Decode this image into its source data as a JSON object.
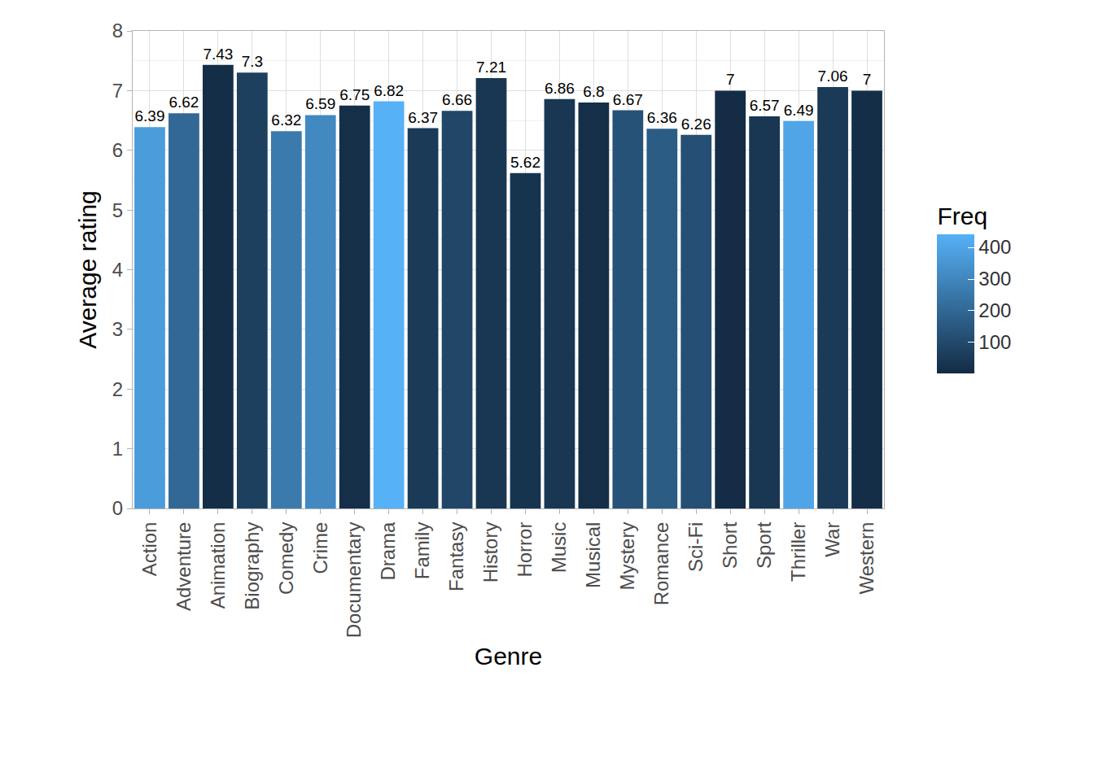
{
  "chart_data": {
    "type": "bar",
    "x_label": "Genre",
    "y_label": "Average rating",
    "categories": [
      "Action",
      "Adventure",
      "Animation",
      "Biography",
      "Comedy",
      "Crime",
      "Documentary",
      "Drama",
      "Family",
      "Fantasy",
      "History",
      "Horror",
      "Music",
      "Musical",
      "Mystery",
      "Romance",
      "Sci-Fi",
      "Short",
      "Sport",
      "Thriller",
      "War",
      "Western"
    ],
    "values": [
      6.39,
      6.62,
      7.43,
      7.3,
      6.32,
      6.59,
      6.75,
      6.82,
      6.37,
      6.66,
      7.21,
      5.62,
      6.86,
      6.8,
      6.67,
      6.36,
      6.26,
      7,
      6.57,
      6.49,
      7.06,
      7
    ],
    "freq": [
      370,
      200,
      10,
      70,
      260,
      310,
      15,
      440,
      50,
      90,
      40,
      30,
      40,
      15,
      130,
      160,
      120,
      5,
      40,
      400,
      50,
      10
    ],
    "color_title": "Freq",
    "color_range": [
      1,
      440
    ],
    "color_ticks": [
      100,
      200,
      300,
      400
    ],
    "ylim": [
      0,
      8
    ],
    "yticks": [
      0,
      1,
      2,
      3,
      4,
      5,
      6,
      7,
      8
    ],
    "grid": true,
    "data_labels": true
  }
}
